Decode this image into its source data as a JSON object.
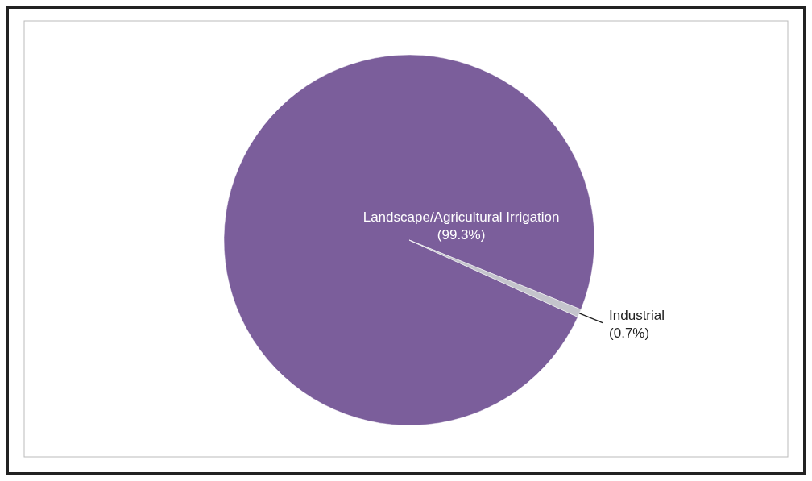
{
  "chart_data": {
    "type": "pie",
    "categories": [
      "Landscape/Agricultural Irrigation",
      "Industrial"
    ],
    "values": [
      99.3,
      0.7
    ],
    "colors": [
      "#7b5e9b",
      "#c4c4cc"
    ],
    "value_labels": [
      "(99.3%)",
      "(0.7%)"
    ]
  }
}
